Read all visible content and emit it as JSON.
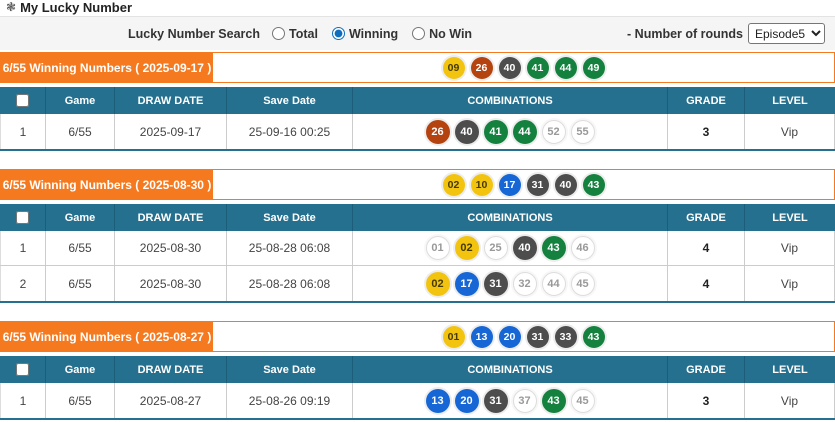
{
  "page": {
    "title": "My Lucky Number",
    "title_icon": "❃"
  },
  "search": {
    "label": "Lucky Number Search",
    "options": [
      {
        "label": "Total",
        "selected": false
      },
      {
        "label": "Winning",
        "selected": true
      },
      {
        "label": "No Win",
        "selected": false
      }
    ],
    "rounds_label": "- Number of rounds",
    "rounds_value": "Episode5"
  },
  "table": {
    "columns": [
      "Game",
      "DRAW DATE",
      "Save Date",
      "COMBINATIONS",
      "GRADE",
      "LEVEL"
    ]
  },
  "colors": {
    "accent_orange": "#f57a1f",
    "header_teal": "#25708e"
  },
  "ball_colors": [
    {
      "max": 10,
      "bg": "#f2c40f",
      "fg": "#463a00"
    },
    {
      "max": 20,
      "bg": "#1666d6",
      "fg": "#ffffff"
    },
    {
      "max": 30,
      "bg": "#b4430f",
      "fg": "#ffffff"
    },
    {
      "max": 40,
      "bg": "#4d4d4d",
      "fg": "#ffffff"
    },
    {
      "max": 55,
      "bg": "#15813f",
      "fg": "#ffffff"
    }
  ],
  "unmatched_ball": {
    "bg": "#ffffff",
    "fg": "#999999",
    "border": "#dddddd"
  },
  "sections": [
    {
      "header": "6/55 Winning Numbers ( 2025-09-17 )",
      "winning_numbers": [
        "09",
        "26",
        "40",
        "41",
        "44",
        "49"
      ],
      "rows": [
        {
          "no": "1",
          "game": "6/55",
          "draw_date": "2025-09-17",
          "save_date": "25-09-16 00:25",
          "combinations": [
            {
              "num": "26",
              "matched": true
            },
            {
              "num": "40",
              "matched": true
            },
            {
              "num": "41",
              "matched": true
            },
            {
              "num": "44",
              "matched": true
            },
            {
              "num": "52",
              "matched": false
            },
            {
              "num": "55",
              "matched": false
            }
          ],
          "grade": "3",
          "level": "Vip"
        }
      ]
    },
    {
      "header": "6/55 Winning Numbers ( 2025-08-30 )",
      "winning_numbers": [
        "02",
        "10",
        "17",
        "31",
        "40",
        "43"
      ],
      "rows": [
        {
          "no": "1",
          "game": "6/55",
          "draw_date": "2025-08-30",
          "save_date": "25-08-28 06:08",
          "combinations": [
            {
              "num": "01",
              "matched": false
            },
            {
              "num": "02",
              "matched": true
            },
            {
              "num": "25",
              "matched": false
            },
            {
              "num": "40",
              "matched": true
            },
            {
              "num": "43",
              "matched": true
            },
            {
              "num": "46",
              "matched": false
            }
          ],
          "grade": "4",
          "level": "Vip"
        },
        {
          "no": "2",
          "game": "6/55",
          "draw_date": "2025-08-30",
          "save_date": "25-08-28 06:08",
          "combinations": [
            {
              "num": "02",
              "matched": true
            },
            {
              "num": "17",
              "matched": true
            },
            {
              "num": "31",
              "matched": true
            },
            {
              "num": "32",
              "matched": false
            },
            {
              "num": "44",
              "matched": false
            },
            {
              "num": "45",
              "matched": false
            }
          ],
          "grade": "4",
          "level": "Vip"
        }
      ]
    },
    {
      "header": "6/55 Winning Numbers ( 2025-08-27 )",
      "winning_numbers": [
        "01",
        "13",
        "20",
        "31",
        "33",
        "43"
      ],
      "rows": [
        {
          "no": "1",
          "game": "6/55",
          "draw_date": "2025-08-27",
          "save_date": "25-08-26 09:19",
          "combinations": [
            {
              "num": "13",
              "matched": true
            },
            {
              "num": "20",
              "matched": true
            },
            {
              "num": "31",
              "matched": true
            },
            {
              "num": "37",
              "matched": false
            },
            {
              "num": "43",
              "matched": true
            },
            {
              "num": "45",
              "matched": false
            }
          ],
          "grade": "3",
          "level": "Vip"
        }
      ]
    }
  ]
}
